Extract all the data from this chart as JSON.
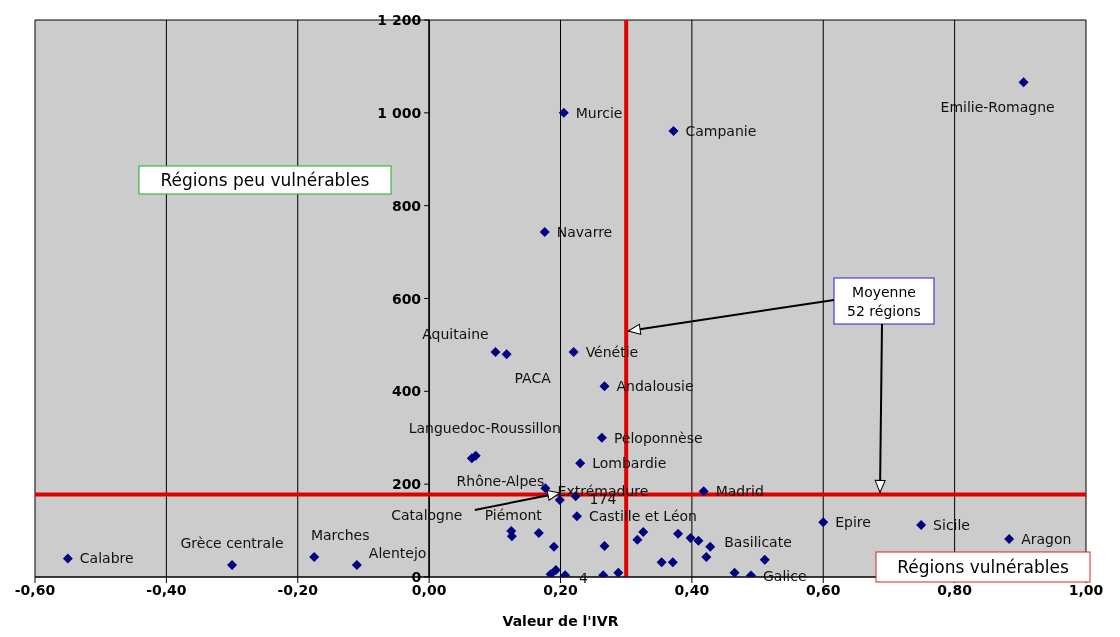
{
  "chart_data": {
    "type": "scatter",
    "xlabel": "Valeur de l'IVR",
    "xlim": [
      -0.6,
      1.0
    ],
    "ylim": [
      0,
      1200
    ],
    "xticks": [
      {
        "value": -0.6,
        "label": "-0,60"
      },
      {
        "value": -0.4,
        "label": "-0,40"
      },
      {
        "value": -0.2,
        "label": "-0,20"
      },
      {
        "value": 0,
        "label": "0,00"
      },
      {
        "value": 0.2,
        "label": "0,20"
      },
      {
        "value": 0.4,
        "label": "0,40"
      },
      {
        "value": 0.6,
        "label": "0,60"
      },
      {
        "value": 0.8,
        "label": "0,80"
      },
      {
        "value": 1.0,
        "label": "1,00"
      }
    ],
    "yticks": [
      0,
      200,
      400,
      600,
      800,
      {
        "value": 1000,
        "label": "1 000"
      },
      {
        "value": 1200,
        "label": "1 200"
      }
    ],
    "grid": true,
    "marker": "diamond",
    "color": "#000080",
    "x": [
      -0.55,
      -0.3,
      -0.175,
      -0.11,
      0.905,
      0.205,
      0.372,
      0.176,
      0.101,
      0.118,
      0.22,
      0.267,
      0.065,
      0.071,
      0.263,
      0.23,
      0.177,
      0.199,
      0.223,
      0.418,
      0.225,
      0.125,
      0.126,
      0.167,
      0.19,
      0.267,
      0.185,
      0.193,
      0.207,
      0.265,
      0.288,
      0.317,
      0.326,
      0.354,
      0.371,
      0.379,
      0.398,
      0.41,
      0.428,
      0.422,
      0.465,
      0.49,
      0.511,
      0.6,
      0.749,
      0.883
    ],
    "values": [
      40,
      26,
      43,
      26,
      1066,
      1000,
      961,
      743,
      485,
      480,
      485,
      411,
      256,
      261,
      300,
      245,
      191,
      166,
      174,
      185,
      131,
      99,
      88,
      95,
      65,
      67,
      6,
      15,
      4,
      4,
      9,
      80,
      97,
      32,
      32,
      93,
      84,
      78,
      65,
      43,
      9,
      3,
      37,
      118,
      112,
      82
    ],
    "value_labels": [
      "Calabre",
      "Grèce centrale",
      "Marches",
      "Alentejo",
      "Emilie-Romagne",
      "Murcie",
      "Campanie",
      "Navarre",
      "Aquitaine",
      "PACA",
      "Vénétie",
      "Andalousie",
      null,
      "Languedoc-Roussillon",
      "Peloponnèse",
      "Lombardie",
      "Rhône-Alpes",
      "Catalogne",
      "Extrémadure",
      "Madrid",
      "Castille et Léon",
      "Piémont",
      null,
      null,
      null,
      null,
      null,
      null,
      null,
      null,
      null,
      null,
      null,
      null,
      null,
      null,
      null,
      null,
      "Basilicate",
      null,
      null,
      "Galice",
      null,
      "Epire",
      "Sicile",
      "Aragon"
    ],
    "ref_lines": [
      {
        "axis": "x",
        "value": 0.3,
        "color": "#e00000"
      },
      {
        "axis": "y",
        "value": 178,
        "color": "#e00000"
      }
    ],
    "annotations": [
      "Régions peu vulnérables",
      "Régions vulnérables",
      {
        "text": "Moyenne\n52 régions",
        "x": 0.3,
        "y": 530
      },
      {
        "text": "174",
        "x": 0.223,
        "y": 174
      },
      {
        "text": "4",
        "x": 0.207,
        "y": 4
      }
    ]
  }
}
